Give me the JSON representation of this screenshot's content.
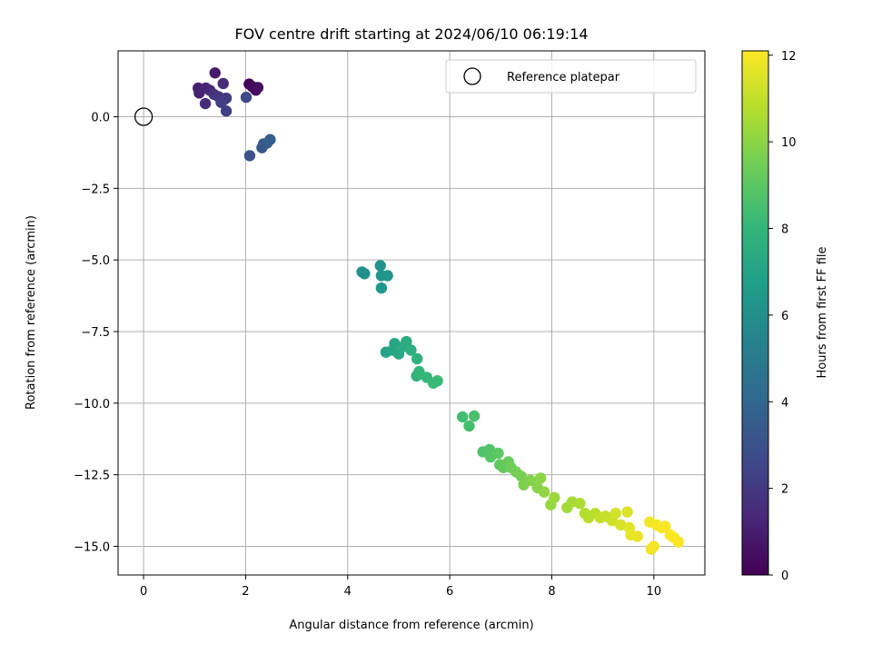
{
  "chart_data": {
    "type": "scatter",
    "title": "FOV centre drift starting at 2024/06/10 06:19:14",
    "xlabel": "Angular distance from reference (arcmin)",
    "ylabel": "Rotation from reference (arcmin)",
    "xlim": [
      -0.5,
      11.0
    ],
    "ylim": [
      -16.0,
      2.3
    ],
    "xticks": [
      0,
      2,
      4,
      6,
      8,
      10
    ],
    "yticks": [
      0.0,
      -2.5,
      -5.0,
      -7.5,
      -10.0,
      -12.5,
      -15.0
    ],
    "grid": true,
    "legend": {
      "placement": "top-right",
      "entries": [
        {
          "label": "Reference platepar",
          "marker": "open-circle"
        }
      ]
    },
    "reference_point": {
      "x": 0.0,
      "y": 0.0
    },
    "colorbar": {
      "label": "Hours from first FF file",
      "colormap": "viridis",
      "range": [
        0,
        12.1
      ],
      "ticks": [
        0,
        2,
        4,
        6,
        8,
        10,
        12
      ]
    },
    "series": [
      {
        "points": [
          {
            "x": 2.07,
            "y": 1.14,
            "t": 0.1
          },
          {
            "x": 2.13,
            "y": 1.05,
            "t": 0.2
          },
          {
            "x": 2.2,
            "y": 0.93,
            "t": 0.3
          },
          {
            "x": 2.24,
            "y": 1.02,
            "t": 0.4
          },
          {
            "x": 1.4,
            "y": 1.53,
            "t": 0.9
          },
          {
            "x": 1.07,
            "y": 1.0,
            "t": 1.0
          },
          {
            "x": 1.09,
            "y": 0.83,
            "t": 1.1
          },
          {
            "x": 1.22,
            "y": 1.0,
            "t": 1.2
          },
          {
            "x": 1.3,
            "y": 0.92,
            "t": 1.4
          },
          {
            "x": 1.21,
            "y": 0.46,
            "t": 1.5
          },
          {
            "x": 1.56,
            "y": 1.16,
            "t": 1.6
          },
          {
            "x": 1.38,
            "y": 0.78,
            "t": 1.8
          },
          {
            "x": 1.47,
            "y": 0.7,
            "t": 1.9
          },
          {
            "x": 1.58,
            "y": 0.6,
            "t": 2.0
          },
          {
            "x": 1.62,
            "y": 0.65,
            "t": 2.1
          },
          {
            "x": 1.52,
            "y": 0.5,
            "t": 2.2
          },
          {
            "x": 1.62,
            "y": 0.2,
            "t": 2.3
          },
          {
            "x": 2.01,
            "y": 0.68,
            "t": 2.6
          },
          {
            "x": 2.08,
            "y": -1.36,
            "t": 3.0
          },
          {
            "x": 2.32,
            "y": -1.08,
            "t": 3.2
          },
          {
            "x": 2.35,
            "y": -0.95,
            "t": 3.4
          },
          {
            "x": 2.42,
            "y": -0.92,
            "t": 3.5
          },
          {
            "x": 2.48,
            "y": -0.8,
            "t": 3.6
          },
          {
            "x": 4.28,
            "y": -5.42,
            "t": 6.0
          },
          {
            "x": 4.33,
            "y": -5.48,
            "t": 6.1
          },
          {
            "x": 4.64,
            "y": -5.2,
            "t": 6.2
          },
          {
            "x": 4.66,
            "y": -5.55,
            "t": 6.3
          },
          {
            "x": 4.78,
            "y": -5.55,
            "t": 6.4
          },
          {
            "x": 4.66,
            "y": -5.98,
            "t": 6.5
          },
          {
            "x": 4.75,
            "y": -8.22,
            "t": 7.0
          },
          {
            "x": 4.88,
            "y": -8.15,
            "t": 7.1
          },
          {
            "x": 4.92,
            "y": -7.92,
            "t": 7.2
          },
          {
            "x": 5.0,
            "y": -8.28,
            "t": 7.3
          },
          {
            "x": 5.1,
            "y": -8.02,
            "t": 7.4
          },
          {
            "x": 5.15,
            "y": -7.85,
            "t": 7.5
          },
          {
            "x": 5.24,
            "y": -8.15,
            "t": 7.6
          },
          {
            "x": 5.36,
            "y": -8.45,
            "t": 7.7
          },
          {
            "x": 5.35,
            "y": -9.05,
            "t": 7.8
          },
          {
            "x": 5.4,
            "y": -8.9,
            "t": 7.9
          },
          {
            "x": 5.55,
            "y": -9.1,
            "t": 8.0
          },
          {
            "x": 5.68,
            "y": -9.3,
            "t": 8.1
          },
          {
            "x": 5.76,
            "y": -9.22,
            "t": 8.2
          },
          {
            "x": 6.25,
            "y": -10.48,
            "t": 8.4
          },
          {
            "x": 6.38,
            "y": -10.8,
            "t": 8.5
          },
          {
            "x": 6.48,
            "y": -10.45,
            "t": 8.6
          },
          {
            "x": 6.65,
            "y": -11.7,
            "t": 8.7
          },
          {
            "x": 6.78,
            "y": -11.62,
            "t": 8.8
          },
          {
            "x": 6.8,
            "y": -11.88,
            "t": 8.9
          },
          {
            "x": 6.95,
            "y": -11.75,
            "t": 9.0
          },
          {
            "x": 6.98,
            "y": -12.15,
            "t": 9.1
          },
          {
            "x": 7.05,
            "y": -12.25,
            "t": 9.2
          },
          {
            "x": 7.15,
            "y": -12.05,
            "t": 9.3
          },
          {
            "x": 7.2,
            "y": -12.25,
            "t": 9.4
          },
          {
            "x": 7.3,
            "y": -12.4,
            "t": 9.5
          },
          {
            "x": 7.4,
            "y": -12.55,
            "t": 9.6
          },
          {
            "x": 7.45,
            "y": -12.85,
            "t": 9.7
          },
          {
            "x": 7.58,
            "y": -12.7,
            "t": 9.8
          },
          {
            "x": 7.72,
            "y": -12.95,
            "t": 9.9
          },
          {
            "x": 7.78,
            "y": -12.62,
            "t": 10.0
          },
          {
            "x": 7.85,
            "y": -13.1,
            "t": 10.1
          },
          {
            "x": 7.98,
            "y": -13.55,
            "t": 10.2
          },
          {
            "x": 8.05,
            "y": -13.3,
            "t": 10.3
          },
          {
            "x": 8.3,
            "y": -13.65,
            "t": 10.4
          },
          {
            "x": 8.4,
            "y": -13.45,
            "t": 10.5
          },
          {
            "x": 8.55,
            "y": -13.5,
            "t": 10.6
          },
          {
            "x": 8.65,
            "y": -13.85,
            "t": 10.7
          },
          {
            "x": 8.72,
            "y": -14.0,
            "t": 10.8
          },
          {
            "x": 8.85,
            "y": -13.85,
            "t": 10.9
          },
          {
            "x": 8.95,
            "y": -14.0,
            "t": 11.0
          },
          {
            "x": 9.05,
            "y": -13.95,
            "t": 11.1
          },
          {
            "x": 9.18,
            "y": -14.1,
            "t": 11.2
          },
          {
            "x": 9.25,
            "y": -13.85,
            "t": 11.3
          },
          {
            "x": 9.35,
            "y": -14.25,
            "t": 11.4
          },
          {
            "x": 9.48,
            "y": -13.8,
            "t": 11.5
          },
          {
            "x": 9.52,
            "y": -14.35,
            "t": 11.6
          },
          {
            "x": 9.55,
            "y": -14.6,
            "t": 11.7
          },
          {
            "x": 9.68,
            "y": -14.65,
            "t": 11.75
          },
          {
            "x": 9.92,
            "y": -14.15,
            "t": 11.8
          },
          {
            "x": 9.95,
            "y": -15.1,
            "t": 11.85
          },
          {
            "x": 10.0,
            "y": -15.0,
            "t": 11.9
          },
          {
            "x": 10.05,
            "y": -14.25,
            "t": 11.95
          },
          {
            "x": 10.15,
            "y": -14.35,
            "t": 12.0
          },
          {
            "x": 10.22,
            "y": -14.3,
            "t": 12.02
          },
          {
            "x": 10.32,
            "y": -14.6,
            "t": 12.05
          },
          {
            "x": 10.4,
            "y": -14.7,
            "t": 12.07
          },
          {
            "x": 10.48,
            "y": -14.85,
            "t": 12.1
          }
        ]
      }
    ]
  }
}
